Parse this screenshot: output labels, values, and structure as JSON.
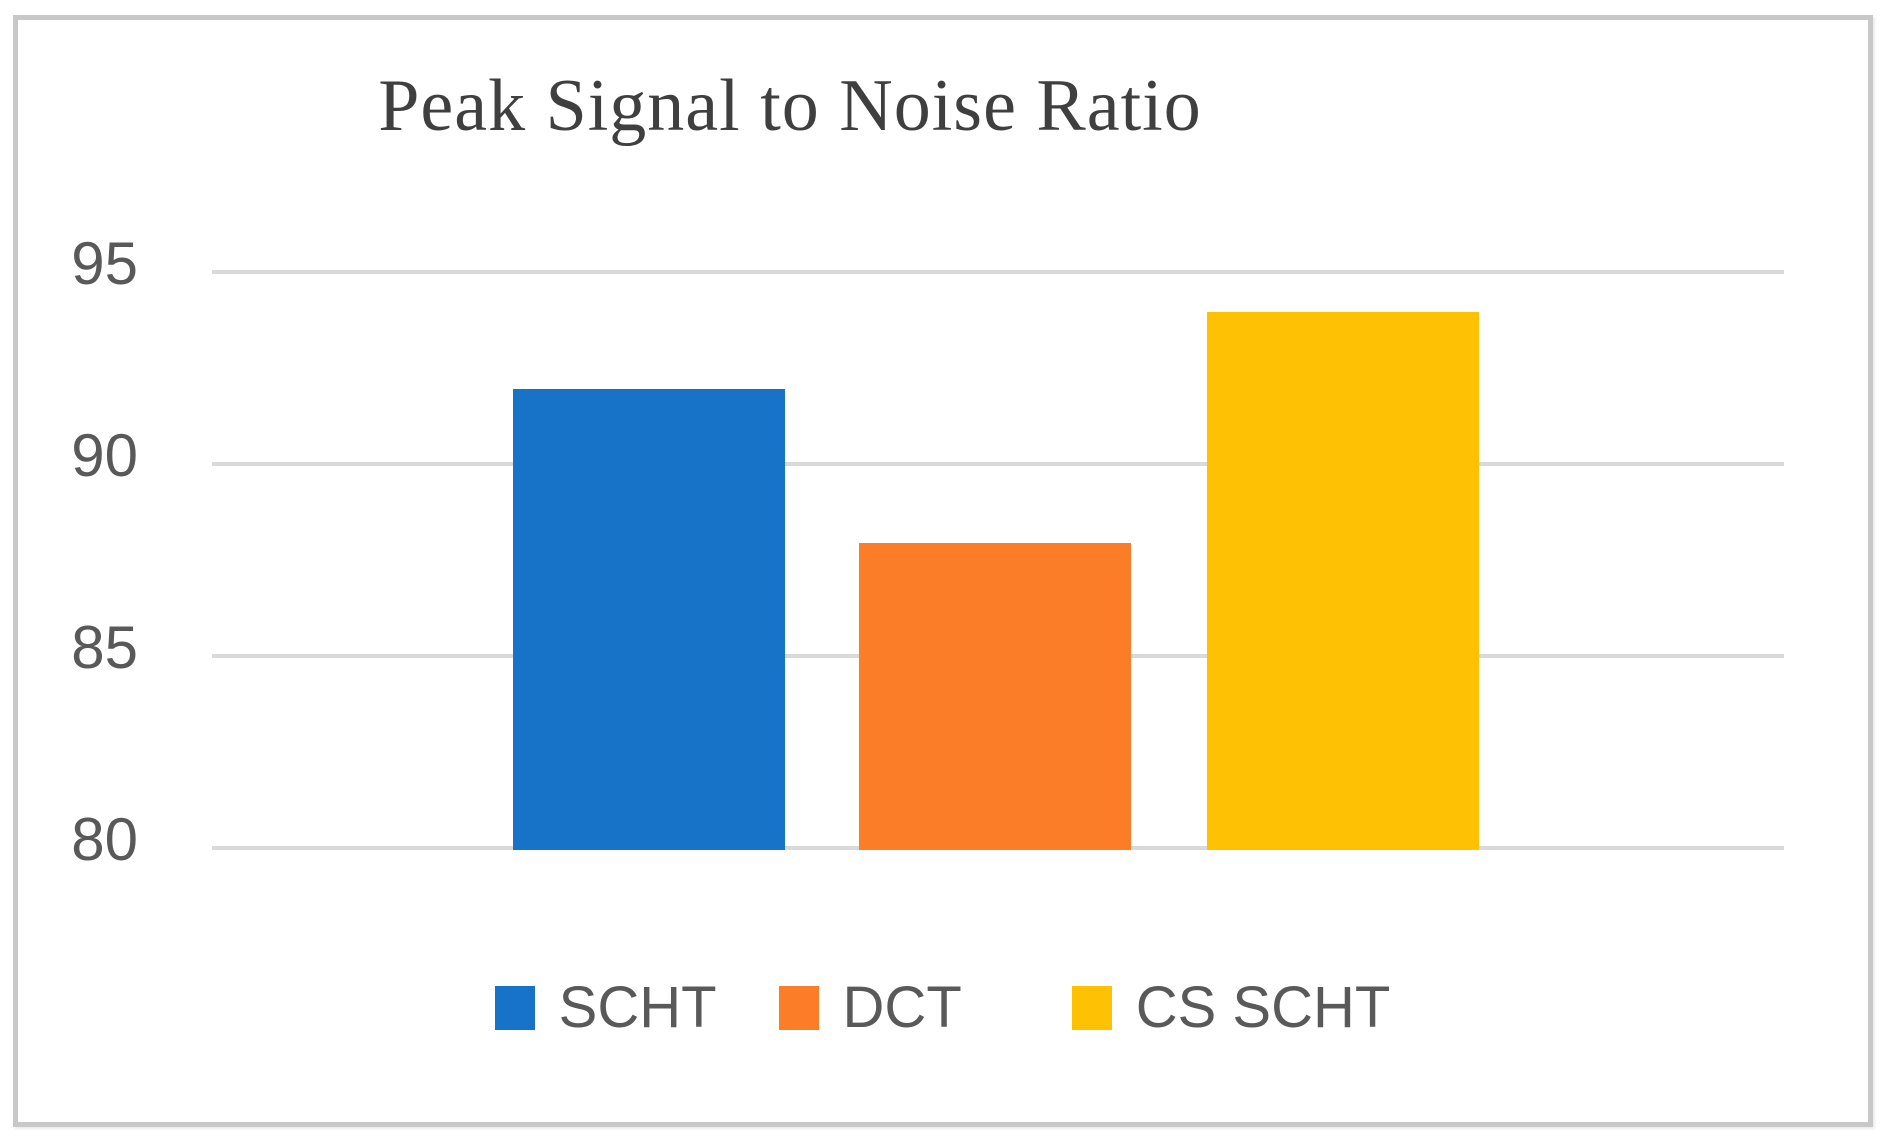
{
  "chart_data": {
    "type": "bar",
    "title": "Peak Signal to Noise Ratio",
    "series": [
      {
        "name": "SCHT",
        "value": 92,
        "color": "#1673C7"
      },
      {
        "name": "DCT",
        "value": 88,
        "color": "#FB7D28"
      },
      {
        "name": "CS SCHT",
        "value": 94,
        "color": "#FFC103"
      }
    ],
    "ylim": [
      80,
      95
    ],
    "yticks": [
      95,
      90,
      85,
      80
    ],
    "xlabel": "",
    "ylabel": "",
    "grid": true,
    "legend_position": "bottom"
  },
  "colors": {
    "gridline": "#D9D9D9",
    "title_text": "#3F3F3F",
    "axis_text": "#595959",
    "legend_text": "#595959",
    "frame_border": "#C8C8C8",
    "background": "#FFFFFF"
  }
}
